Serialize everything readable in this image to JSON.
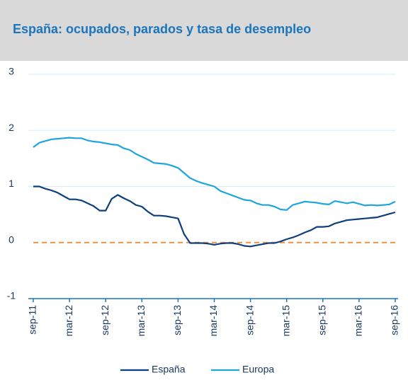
{
  "chart_data": {
    "type": "line",
    "title": "España: ocupados, parados y tasa de desempleo",
    "categories": [
      "sep-11",
      null,
      null,
      null,
      null,
      null,
      "mar-12",
      null,
      null,
      null,
      null,
      null,
      "sep-12",
      null,
      null,
      null,
      null,
      null,
      "mar-13",
      null,
      null,
      null,
      null,
      null,
      "sep-13",
      null,
      null,
      null,
      null,
      null,
      "mar-14",
      null,
      null,
      null,
      null,
      null,
      "sep-14",
      null,
      null,
      null,
      null,
      null,
      "mar-15",
      null,
      null,
      null,
      null,
      null,
      "sep-15",
      null,
      null,
      null,
      null,
      null,
      "mar-16",
      null,
      null,
      null,
      null,
      null,
      "sep-16"
    ],
    "series": [
      {
        "name": "España",
        "color": "#0d3f7e",
        "values": [
          1.0,
          1.0,
          0.96,
          0.93,
          0.89,
          0.83,
          0.77,
          0.77,
          0.75,
          0.7,
          0.65,
          0.57,
          0.57,
          0.78,
          0.85,
          0.79,
          0.74,
          0.67,
          0.64,
          0.55,
          0.48,
          0.48,
          0.47,
          0.45,
          0.43,
          0.15,
          -0.01,
          -0.01,
          -0.01,
          -0.02,
          -0.04,
          -0.02,
          -0.01,
          -0.01,
          -0.03,
          -0.06,
          -0.07,
          -0.05,
          -0.03,
          -0.01,
          -0.01,
          0.02,
          0.06,
          0.09,
          0.13,
          0.18,
          0.22,
          0.28,
          0.28,
          0.29,
          0.34,
          0.37,
          0.4,
          0.41,
          0.42,
          0.43,
          0.44,
          0.45,
          0.48,
          0.51,
          0.54
        ]
      },
      {
        "name": "Europa",
        "color": "#1ea5df",
        "values": [
          1.7,
          1.78,
          1.81,
          1.84,
          1.85,
          1.86,
          1.87,
          1.86,
          1.86,
          1.82,
          1.8,
          1.79,
          1.77,
          1.75,
          1.74,
          1.68,
          1.65,
          1.58,
          1.53,
          1.48,
          1.42,
          1.41,
          1.4,
          1.37,
          1.33,
          1.24,
          1.15,
          1.1,
          1.06,
          1.03,
          1.0,
          0.92,
          0.88,
          0.84,
          0.8,
          0.76,
          0.75,
          0.7,
          0.67,
          0.67,
          0.64,
          0.59,
          0.58,
          0.67,
          0.7,
          0.73,
          0.72,
          0.71,
          0.69,
          0.68,
          0.74,
          0.72,
          0.7,
          0.72,
          0.69,
          0.66,
          0.67,
          0.66,
          0.67,
          0.68,
          0.73
        ]
      }
    ],
    "ylim": [
      -1,
      3
    ],
    "yticks": [
      -1,
      0,
      1,
      2,
      3
    ],
    "grid": true,
    "zero_line_color": "#f0913a",
    "legend": "bottom"
  }
}
